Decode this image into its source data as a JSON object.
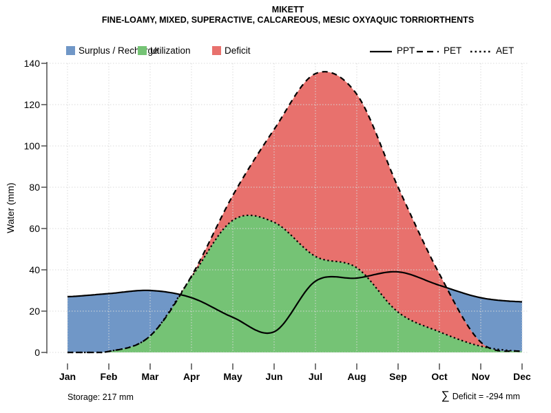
{
  "title": "MIKETT",
  "subtitle": "FINE-LOAMY, MIXED, SUPERACTIVE, CALCAREOUS, MESIC OXYAQUIC TORRIORTHENTS",
  "legend": {
    "fills": [
      {
        "label": "Surplus / Recharge",
        "color": "#7097C7"
      },
      {
        "label": "Utilization",
        "color": "#75C375"
      },
      {
        "label": "Deficit",
        "color": "#E8716D"
      }
    ],
    "lines": [
      {
        "label": "PPT",
        "style": "solid"
      },
      {
        "label": "PET",
        "style": "dashed"
      },
      {
        "label": "AET",
        "style": "dotted"
      }
    ]
  },
  "axes": {
    "y": {
      "label": "Water (mm)",
      "ticks": [
        0,
        20,
        40,
        60,
        80,
        100,
        120,
        140
      ]
    },
    "x": {
      "labels": [
        "Jan",
        "Feb",
        "Mar",
        "Apr",
        "May",
        "Jun",
        "Jul",
        "Aug",
        "Sep",
        "Oct",
        "Nov",
        "Dec"
      ]
    }
  },
  "annotations": {
    "storage": "Storage: 217 mm",
    "deficit_sigma": "∑",
    "deficit": "Deficit = -294 mm"
  },
  "chart_data": {
    "type": "area",
    "categories": [
      "Jan",
      "Feb",
      "Mar",
      "Apr",
      "May",
      "Jun",
      "Jul",
      "Aug",
      "Sep",
      "Oct",
      "Nov",
      "Dec"
    ],
    "series": [
      {
        "name": "PPT",
        "style": "solid",
        "color": "#000000",
        "values": [
          27,
          28.5,
          30,
          26.5,
          17,
          10,
          34.5,
          36,
          39,
          32.5,
          26.5,
          24.5
        ]
      },
      {
        "name": "PET",
        "style": "dashed",
        "color": "#000000",
        "values": [
          0,
          0.5,
          8,
          37,
          76,
          108,
          135,
          125,
          80,
          38,
          5,
          0.5
        ]
      },
      {
        "name": "AET",
        "style": "dotted",
        "color": "#000000",
        "values": [
          0,
          0.5,
          8,
          36.5,
          64,
          63,
          46.5,
          41,
          19.5,
          10,
          3,
          0.5
        ]
      }
    ],
    "areas": [
      {
        "name": "Surplus / Recharge",
        "rule": "between PPT and PET where PPT > PET",
        "color": "#7097C7"
      },
      {
        "name": "Utilization",
        "rule": "under AET",
        "color": "#75C375"
      },
      {
        "name": "Deficit",
        "rule": "between PET and AET where PET > AET",
        "color": "#E8716D"
      }
    ],
    "title": "MIKETT",
    "subtitle": "FINE-LOAMY, MIXED, SUPERACTIVE, CALCAREOUS, MESIC OXYAQUIC TORRIORTHENTS",
    "xlabel": "",
    "ylabel": "Water (mm)",
    "ylim": [
      0,
      140
    ],
    "grid": "dotted",
    "legend_position": "top",
    "annotations": {
      "storage_mm": 217,
      "total_deficit_mm": -294
    }
  },
  "style": {
    "axis_color": "#4D4D4D",
    "grid_color": "#D9D9D9",
    "curve_color": "#000000"
  }
}
